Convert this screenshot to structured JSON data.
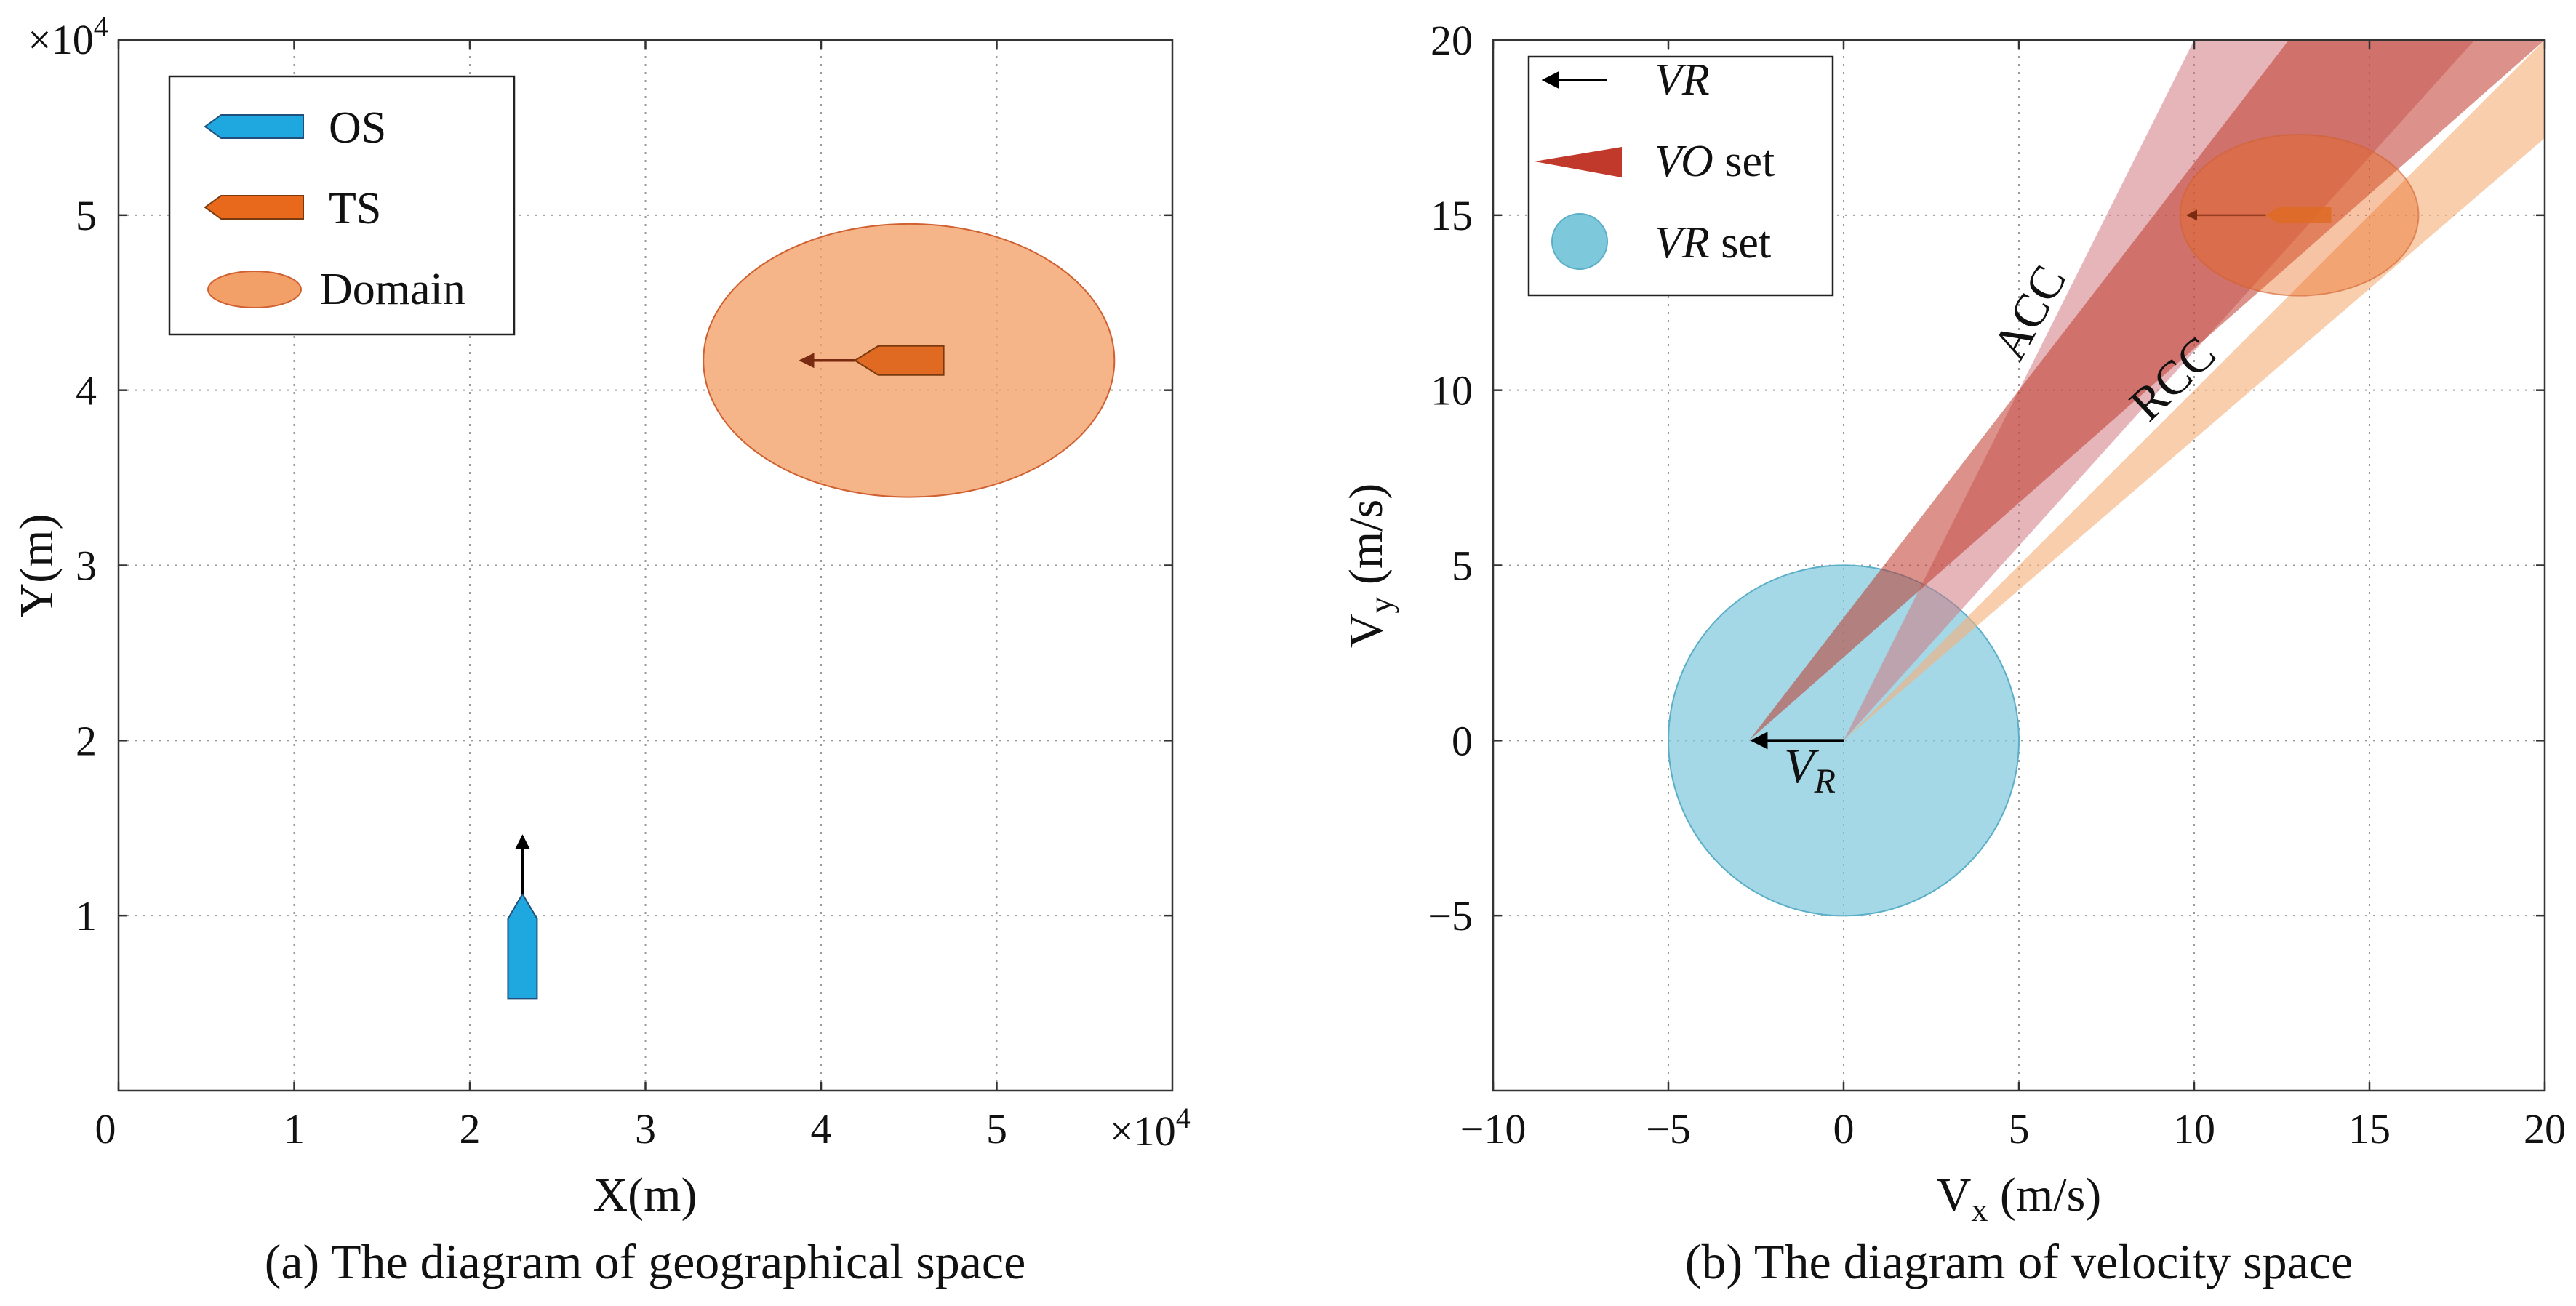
{
  "chart_data": [
    {
      "type": "scatter",
      "caption": "(a)  The diagram of geographical space",
      "xlabel": "X(m)",
      "ylabel": "Y(m)",
      "x_multiplier": "×10",
      "y_multiplier": "×10",
      "multiplier_exp": "4",
      "xlim": [
        0,
        6
      ],
      "ylim": [
        0,
        6
      ],
      "xticks": [
        "0",
        "1",
        "2",
        "3",
        "4",
        "5"
      ],
      "yticks": [
        "1",
        "2",
        "3",
        "4",
        "5"
      ],
      "grid": true,
      "legend_position": "top-left",
      "legend": [
        {
          "name": "OS",
          "color": "#1fa8e0"
        },
        {
          "name": "TS",
          "color": "#e8681c"
        },
        {
          "name": "Domain",
          "color": "#f2a067"
        }
      ],
      "own_ship": {
        "x": 2.3,
        "y": 0.8,
        "heading": "north"
      },
      "target_ship": {
        "x": 4.4,
        "y": 4.17,
        "heading": "west"
      },
      "domain": {
        "center_x": 4.5,
        "center_y": 4.17,
        "semi_axis_x": 1.17,
        "semi_axis_y": 0.78
      }
    },
    {
      "type": "area",
      "caption": "(b)  The diagram of velocity space",
      "xlabel": "V",
      "xlabel_sub": "x",
      "xlabel_unit": " (m/s)",
      "ylabel": "V",
      "ylabel_sub": "y",
      "ylabel_unit": " (m/s)",
      "xlim": [
        -10,
        20
      ],
      "ylim": [
        -10,
        20
      ],
      "xticks": [
        "−10",
        "−5",
        "0",
        "5",
        "10",
        "15",
        "20"
      ],
      "yticks": [
        "−5",
        "0",
        "5",
        "10",
        "15",
        "20"
      ],
      "grid": true,
      "legend_position": "top-left",
      "legend": [
        {
          "name": "VR",
          "suffix": "",
          "color": "#000000"
        },
        {
          "name": "VO",
          "suffix": " set",
          "color": "#c0392b"
        },
        {
          "name": "VR",
          "suffix": " set",
          "color": "#7ec8dc"
        }
      ],
      "vr_vector": {
        "from": [
          0,
          0
        ],
        "to": [
          -2.7,
          0
        ],
        "label": "V",
        "label_sub": "R"
      },
      "vr_set_circle": {
        "center": [
          0,
          0
        ],
        "radius": 5
      },
      "acc": {
        "label": "ACC",
        "apex": [
          0,
          0
        ],
        "edges": [
          [
            10,
            20
          ],
          [
            18,
            20
          ]
        ],
        "color": "#d07880"
      },
      "rcc": {
        "label": "RCC",
        "apex": [
          0,
          0
        ],
        "edges": [
          [
            20,
            20
          ],
          [
            20,
            17.2
          ]
        ],
        "color": "#f6b07a"
      },
      "vo_set": {
        "apex": [
          -2.7,
          0
        ],
        "edges": [
          [
            12.7,
            20
          ],
          [
            20,
            20
          ]
        ],
        "color": "#c0392b"
      },
      "target_domain": {
        "center": [
          13,
          15
        ],
        "semi_axis_x": 3.4,
        "semi_axis_y": 2.3
      },
      "target_ship": {
        "x": 12.5,
        "y": 15,
        "heading": "west"
      }
    }
  ]
}
